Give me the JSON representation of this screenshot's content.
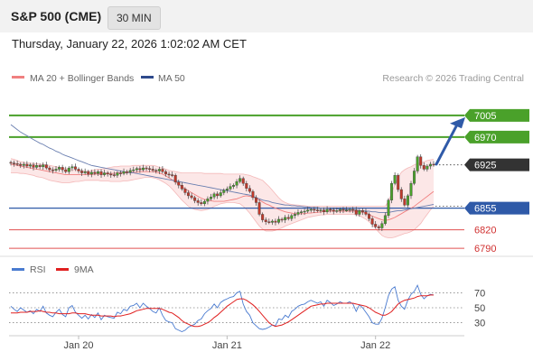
{
  "header": {
    "symbol": "S&P 500 (CME)",
    "timeframe": "30 MIN",
    "datetime": "Thursday, January 22, 2026 1:02:02 AM CET"
  },
  "legend": {
    "ma20_label": "MA 20 + Bollinger Bands",
    "ma50_label": "MA 50",
    "ma20_color": "#f08080",
    "ma50_color": "#2e4a8c",
    "credit": "Research © 2026 Trading Central"
  },
  "levels": [
    {
      "value": 7005,
      "label": "7005",
      "kind": "resistance",
      "color": "#4aa12a"
    },
    {
      "value": 6970,
      "label": "6970",
      "kind": "resistance",
      "color": "#4aa12a"
    },
    {
      "value": 6925,
      "label": "6925",
      "kind": "last-price",
      "color": "#333333"
    },
    {
      "value": 6855,
      "label": "6855",
      "kind": "pivot",
      "color": "#2f5aa8"
    },
    {
      "value": 6820,
      "label": "6820",
      "kind": "support",
      "color": "#e05050"
    },
    {
      "value": 6790,
      "label": "6790",
      "kind": "support",
      "color": "#e05050"
    }
  ],
  "rsi_legend": {
    "rsi_label": "RSI",
    "ma_label": "9MA",
    "rsi_color": "#4a7bd0",
    "ma_color": "#e02020"
  },
  "rsi_ticks": [
    "70",
    "50",
    "30"
  ],
  "x_labels": [
    "Jan 20",
    "Jan 21",
    "Jan 22"
  ],
  "chart_data": {
    "type": "candlestick",
    "price_ylim": [
      6780,
      7050
    ],
    "rsi_ylim": [
      15,
      85
    ],
    "closes": [
      6928,
      6927,
      6926,
      6924,
      6926,
      6923,
      6925,
      6921,
      6924,
      6922,
      6925,
      6920,
      6917,
      6916,
      6918,
      6921,
      6917,
      6914,
      6920,
      6922,
      6918,
      6915,
      6912,
      6914,
      6910,
      6913,
      6911,
      6914,
      6909,
      6912,
      6910,
      6909,
      6908,
      6912,
      6911,
      6914,
      6913,
      6916,
      6917,
      6919,
      6917,
      6920,
      6919,
      6918,
      6916,
      6915,
      6918,
      6914,
      6910,
      6909,
      6908,
      6897,
      6892,
      6886,
      6880,
      6875,
      6872,
      6867,
      6864,
      6862,
      6866,
      6870,
      6873,
      6878,
      6875,
      6880,
      6884,
      6886,
      6890,
      6892,
      6898,
      6903,
      6895,
      6887,
      6882,
      6872,
      6864,
      6845,
      6836,
      6833,
      6832,
      6834,
      6832,
      6837,
      6836,
      6840,
      6838,
      6843,
      6845,
      6848,
      6849,
      6850,
      6852,
      6853,
      6852,
      6851,
      6852,
      6849,
      6853,
      6852,
      6850,
      6851,
      6853,
      6852,
      6852,
      6853,
      6852,
      6845,
      6851,
      6849,
      6845,
      6838,
      6829,
      6825,
      6823,
      6830,
      6843,
      6868,
      6895,
      6908,
      6885,
      6870,
      6860,
      6875,
      6895,
      6915,
      6938,
      6924,
      6918,
      6923,
      6926,
      6925
    ],
    "bands": {
      "upper": [
        6935,
        6934,
        6932,
        6930,
        6929,
        6928,
        6928,
        6927,
        6927,
        6926,
        6926,
        6925,
        6924,
        6923,
        6922,
        6921,
        6920,
        6919,
        6918,
        6917,
        6917,
        6916,
        6916,
        6915,
        6915,
        6916,
        6917,
        6918,
        6918,
        6919,
        6920,
        6921,
        6922,
        6922,
        6923,
        6923,
        6923,
        6923,
        6924,
        6924,
        6924,
        6924,
        6924,
        6924,
        6924,
        6923,
        6921,
        6920,
        6918,
        6916,
        6915,
        6914,
        6913,
        6912,
        6912,
        6912,
        6912,
        6912,
        6912,
        6912,
        6911,
        6911,
        6911,
        6911,
        6911,
        6911,
        6910,
        6910,
        6910,
        6910,
        6910,
        6910,
        6910,
        6909,
        6908,
        6906,
        6904,
        6902,
        6900,
        6895,
        6890,
        6884,
        6878,
        6872,
        6867,
        6864,
        6862,
        6861,
        6860,
        6860,
        6859,
        6859,
        6858,
        6858,
        6858,
        6858,
        6858,
        6858,
        6858,
        6858,
        6858,
        6858,
        6858,
        6858,
        6858,
        6858,
        6858,
        6858,
        6858,
        6858,
        6858,
        6858,
        6858,
        6858,
        6858,
        6858,
        6858,
        6866,
        6880,
        6893,
        6905,
        6913,
        6917,
        6920,
        6922,
        6925,
        6927,
        6928,
        6930,
        6932,
        6933,
        6934
      ],
      "lower": [
        6912,
        6912,
        6912,
        6911,
        6911,
        6910,
        6909,
        6908,
        6906,
        6905,
        6904,
        6902,
        6900,
        6899,
        6898,
        6897,
        6896,
        6896,
        6896,
        6897,
        6898,
        6898,
        6899,
        6900,
        6900,
        6900,
        6900,
        6900,
        6899,
        6899,
        6899,
        6898,
        6898,
        6898,
        6898,
        6899,
        6899,
        6900,
        6901,
        6902,
        6903,
        6904,
        6905,
        6905,
        6904,
        6903,
        6901,
        6898,
        6895,
        6891,
        6886,
        6880,
        6874,
        6868,
        6863,
        6858,
        6855,
        6853,
        6852,
        6851,
        6852,
        6853,
        6855,
        6858,
        6860,
        6862,
        6863,
        6864,
        6864,
        6864,
        6863,
        6862,
        6858,
        6853,
        6847,
        6840,
        6833,
        6826,
        6821,
        6818,
        6818,
        6818,
        6819,
        6821,
        6823,
        6826,
        6828,
        6830,
        6832,
        6834,
        6836,
        6838,
        6840,
        6841,
        6842,
        6843,
        6844,
        6844,
        6845,
        6845,
        6845,
        6845,
        6845,
        6845,
        6845,
        6845,
        6845,
        6844,
        6843,
        6840,
        6837,
        6833,
        6828,
        6822,
        6816,
        6811,
        6808,
        6807,
        6807,
        6808,
        6810,
        6812,
        6814,
        6815,
        6817,
        6820,
        6825,
        6830,
        6838,
        6845,
        6852,
        6858
      ],
      "mid": [
        6926,
        6925,
        6924,
        6923,
        6922,
        6921,
        6920,
        6919,
        6918,
        6917,
        6916,
        6915,
        6914,
        6913,
        6912,
        6911,
        6910,
        6909,
        6909,
        6909,
        6909,
        6909,
        6909,
        6909,
        6909,
        6909,
        6910,
        6910,
        6910,
        6910,
        6911,
        6911,
        6911,
        6912,
        6912,
        6912,
        6912,
        6913,
        6913,
        6913,
        6914,
        6914,
        6914,
        6914,
        6914,
        6913,
        6912,
        6910,
        6907,
        6904,
        6901,
        6898,
        6894,
        6890,
        6886,
        6883,
        6880,
        6877,
        6874,
        6871,
        6869,
        6868,
        6867,
        6866,
        6866,
        6866,
        6866,
        6867,
        6868,
        6869,
        6870,
        6872,
        6874,
        6875,
        6874,
        6873,
        6871,
        6868,
        6865,
        6862,
        6860,
        6857,
        6855,
        6853,
        6851,
        6849,
        6848,
        6847,
        6846,
        6846,
        6846,
        6846,
        6847,
        6847,
        6848,
        6848,
        6849,
        6849,
        6850,
        6850,
        6850,
        6850,
        6850,
        6850,
        6850,
        6850,
        6850,
        6850,
        6849,
        6848,
        6847,
        6845,
        6842,
        6840,
        6838,
        6836,
        6835,
        6836,
        6838,
        6840,
        6843,
        6846,
        6849,
        6852,
        6855,
        6858,
        6862,
        6866,
        6870,
        6874,
        6878,
        6882
      ]
    },
    "ma50": [
      6990,
      6986,
      6982,
      6978,
      6975,
      6972,
      6969,
      6966,
      6963,
      6960,
      6958,
      6955,
      6952,
      6950,
      6947,
      6945,
      6942,
      6940,
      6938,
      6936,
      6934,
      6932,
      6930,
      6928,
      6926,
      6924,
      6923,
      6922,
      6921,
      6920,
      6919,
      6918,
      6917,
      6916,
      6915,
      6914,
      6913,
      6912,
      6912,
      6911,
      6910,
      6909,
      6908,
      6907,
      6906,
      6905,
      6904,
      6903,
      6902,
      6901,
      6900,
      6899,
      6898,
      6897,
      6896,
      6895,
      6894,
      6893,
      6892,
      6891,
      6890,
      6889,
      6888,
      6887,
      6886,
      6885,
      6884,
      6883,
      6882,
      6881,
      6880,
      6879,
      6878,
      6877,
      6876,
      6874,
      6872,
      6870,
      6868,
      6867,
      6866,
      6864,
      6863,
      6862,
      6861,
      6860,
      6860,
      6859,
      6859,
      6858,
      6858,
      6857,
      6857,
      6856,
      6856,
      6856,
      6855,
      6855,
      6855,
      6854,
      6854,
      6854,
      6853,
      6853,
      6853,
      6852,
      6852,
      6852,
      6851,
      6851,
      6850,
      6850,
      6849,
      6849,
      6848,
      6848,
      6848,
      6848,
      6849,
      6850,
      6851,
      6851,
      6852,
      6853,
      6854,
      6855,
      6856,
      6857,
      6858,
      6859,
      6860,
      6861
    ],
    "rsi": [
      52,
      48,
      45,
      50,
      47,
      44,
      46,
      42,
      48,
      45,
      52,
      43,
      40,
      38,
      44,
      48,
      41,
      38,
      50,
      53,
      44,
      40,
      36,
      40,
      35,
      41,
      37,
      43,
      34,
      40,
      38,
      37,
      36,
      44,
      42,
      48,
      46,
      52,
      53,
      56,
      50,
      56,
      52,
      49,
      45,
      43,
      50,
      40,
      33,
      31,
      30,
      22,
      20,
      18,
      20,
      24,
      26,
      28,
      33,
      35,
      42,
      46,
      49,
      55,
      50,
      57,
      60,
      62,
      64,
      65,
      70,
      72,
      55,
      45,
      40,
      30,
      26,
      22,
      21,
      22,
      24,
      27,
      26,
      35,
      34,
      40,
      37,
      45,
      48,
      52,
      54,
      55,
      58,
      60,
      58,
      56,
      58,
      52,
      60,
      57,
      53,
      55,
      58,
      56,
      56,
      58,
      55,
      45,
      54,
      50,
      44,
      38,
      30,
      28,
      28,
      36,
      50,
      66,
      75,
      78,
      60,
      52,
      48,
      60,
      68,
      72,
      80,
      68,
      62,
      66,
      68,
      67
    ],
    "rsi_ma": [
      43,
      43,
      43,
      44,
      44,
      44,
      45,
      45,
      45,
      46,
      45,
      44,
      44,
      43,
      43,
      42,
      42,
      42,
      42,
      43,
      43,
      42,
      42,
      42,
      41,
      40,
      40,
      40,
      39,
      39,
      39,
      39,
      38,
      39,
      39,
      40,
      41,
      42,
      44,
      46,
      47,
      48,
      49,
      49,
      49,
      49,
      49,
      48,
      46,
      44,
      43,
      40,
      37,
      33,
      30,
      28,
      26,
      25,
      25,
      26,
      28,
      30,
      33,
      37,
      40,
      44,
      48,
      52,
      55,
      58,
      61,
      62,
      62,
      60,
      57,
      54,
      50,
      45,
      40,
      35,
      30,
      27,
      25,
      26,
      27,
      29,
      31,
      34,
      37,
      40,
      43,
      46,
      49,
      52,
      53,
      54,
      55,
      55,
      56,
      56,
      56,
      56,
      56,
      56,
      56,
      56,
      56,
      55,
      54,
      53,
      52,
      50,
      47,
      44,
      42,
      40,
      40,
      42,
      45,
      50,
      55,
      58,
      60,
      61,
      62,
      63,
      65,
      66,
      66,
      66,
      67,
      67
    ],
    "x_label_positions": [
      21,
      67,
      113
    ]
  }
}
